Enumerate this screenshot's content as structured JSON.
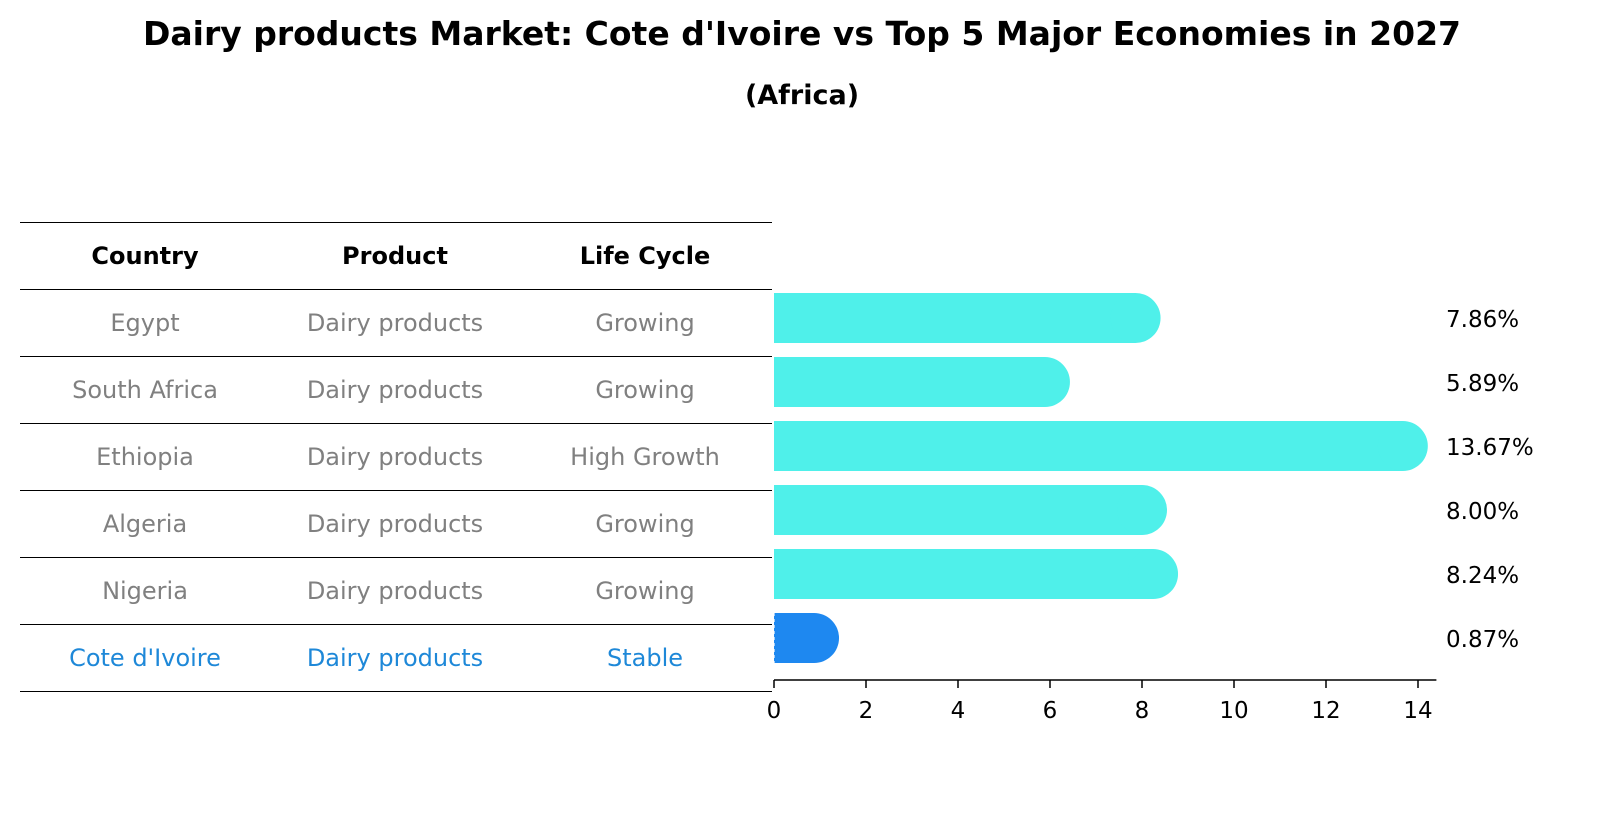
{
  "title": "Dairy products Market: Cote d'Ivoire vs Top 5 Major Economies in 2027",
  "subtitle": "(Africa)",
  "table": {
    "headers": [
      "Country",
      "Product",
      "Life Cycle"
    ],
    "rows": [
      {
        "country": "Egypt",
        "product": "Dairy products",
        "life_cycle": "Growing"
      },
      {
        "country": "South Africa",
        "product": "Dairy products",
        "life_cycle": "Growing"
      },
      {
        "country": "Ethiopia",
        "product": "Dairy products",
        "life_cycle": "High Growth"
      },
      {
        "country": "Algeria",
        "product": "Dairy products",
        "life_cycle": "Growing"
      },
      {
        "country": "Nigeria",
        "product": "Dairy products",
        "life_cycle": "Growing"
      },
      {
        "country": "Cote d'Ivoire",
        "product": "Dairy products",
        "life_cycle": "Stable"
      }
    ]
  },
  "colors": {
    "bar": "#4ff0ea",
    "highlight_bar": "#1e88f0",
    "highlight_text": "#1e88d8",
    "muted_text": "#808080"
  },
  "chart_data": {
    "type": "bar",
    "orientation": "horizontal",
    "categories": [
      "Egypt",
      "South Africa",
      "Ethiopia",
      "Algeria",
      "Nigeria",
      "Cote d'Ivoire"
    ],
    "values": [
      7.86,
      5.89,
      13.67,
      8.0,
      8.24,
      0.87
    ],
    "value_labels": [
      "7.86%",
      "5.89%",
      "13.67%",
      "8.00%",
      "8.24%",
      "0.87%"
    ],
    "highlight": "Cote d'Ivoire",
    "xlim": [
      0,
      14.4
    ],
    "xticks": [
      0,
      2,
      4,
      6,
      8,
      10,
      12,
      14
    ],
    "xlabel": "",
    "ylabel": "",
    "grid": false
  }
}
